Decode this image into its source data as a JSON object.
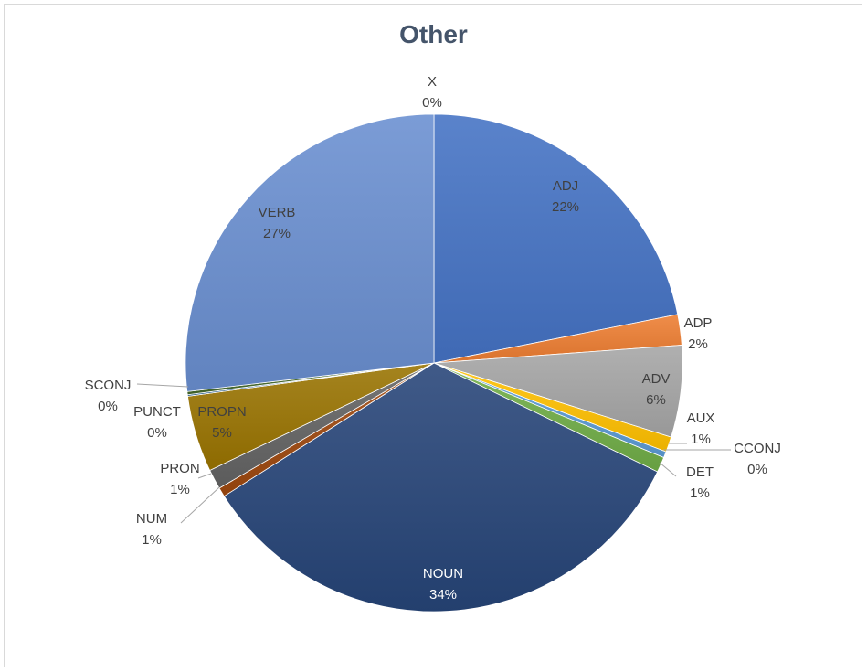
{
  "chart_data": {
    "type": "pie",
    "title": "Other",
    "slices": [
      {
        "label": "ADJ",
        "value": 22,
        "display": "22%",
        "color": "#4472c4"
      },
      {
        "label": "ADP",
        "value": 2,
        "display": "2%",
        "color": "#ed7d31"
      },
      {
        "label": "ADV",
        "value": 6,
        "display": "6%",
        "color": "#a5a5a5"
      },
      {
        "label": "AUX",
        "value": 1,
        "display": "1%",
        "color": "#ffc000"
      },
      {
        "label": "CCONJ",
        "value": 0.4,
        "display": "0%",
        "color": "#5b9bd5"
      },
      {
        "label": "DET",
        "value": 1,
        "display": "1%",
        "color": "#70ad47"
      },
      {
        "label": "NOUN",
        "value": 34,
        "display": "34%",
        "color": "#264478"
      },
      {
        "label": "NUM",
        "value": 0.6,
        "display": "1%",
        "color": "#9e480e"
      },
      {
        "label": "PRON",
        "value": 1.3,
        "display": "1%",
        "color": "#636363"
      },
      {
        "label": "PROPN",
        "value": 5,
        "display": "5%",
        "color": "#997300"
      },
      {
        "label": "PUNCT",
        "value": 0.1,
        "display": "0%",
        "color": "#255e91"
      },
      {
        "label": "SCONJ",
        "value": 0.2,
        "display": "0%",
        "color": "#43682b"
      },
      {
        "label": "VERB",
        "value": 27,
        "display": "27%",
        "color": "#698ed0"
      },
      {
        "label": "X",
        "value": 0,
        "display": "0%",
        "color": "#f1975a"
      }
    ]
  }
}
